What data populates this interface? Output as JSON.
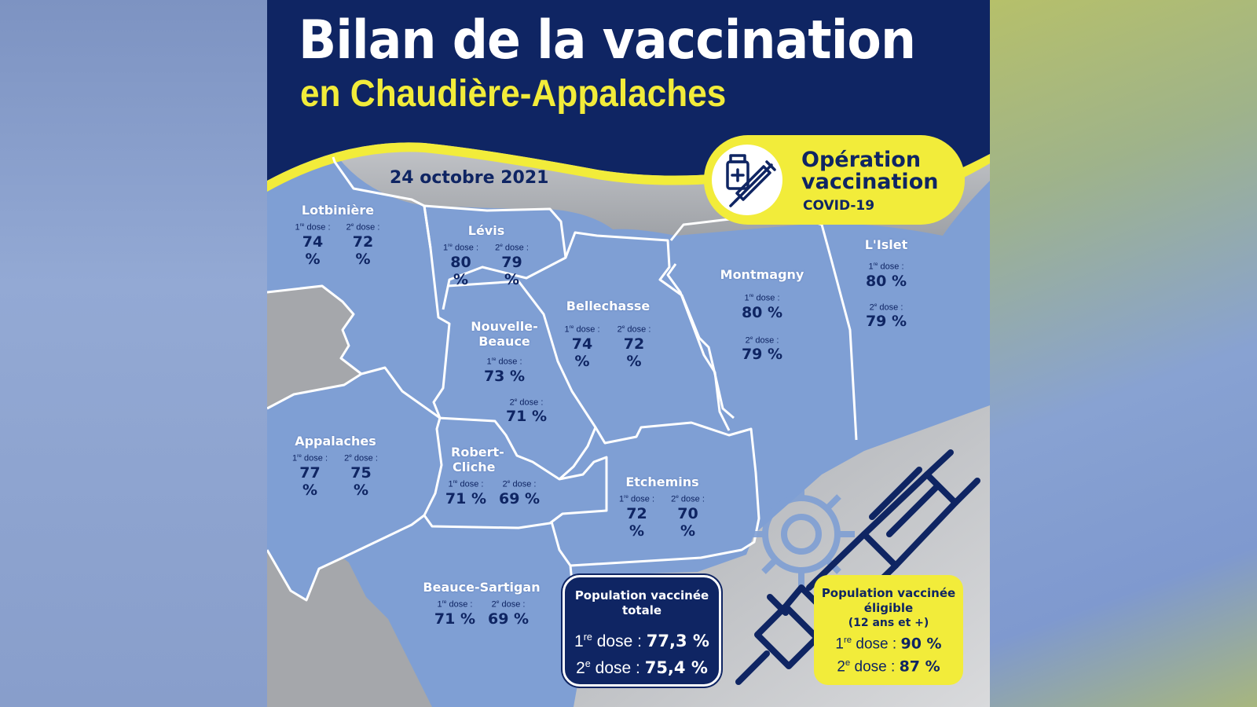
{
  "header": {
    "title": "Bilan de la vaccination",
    "subtitle": "en Chaudière-Appalaches",
    "date": "24 octobre 2021"
  },
  "operation_badge": {
    "line1": "Opération",
    "line2": "vaccination",
    "line3": "COVID-19",
    "icon": "vaccine-bottle-syringe-icon"
  },
  "dose_labels": {
    "first_sup": "re",
    "second_sup": "e",
    "suffix": " dose :"
  },
  "regions": [
    {
      "id": "lotbiniere",
      "name": "Lotbinière",
      "dose1": "74 %",
      "dose2": "72 %"
    },
    {
      "id": "levis",
      "name": "Lévis",
      "dose1": "80 %",
      "dose2": "79 %"
    },
    {
      "id": "bellechasse",
      "name": "Bellechasse",
      "dose1": "74 %",
      "dose2": "72 %"
    },
    {
      "id": "montmagny",
      "name": "Montmagny",
      "dose1": "80 %",
      "dose2": "79 %"
    },
    {
      "id": "lislet",
      "name": "L'Islet",
      "dose1": "80 %",
      "dose2": "79 %"
    },
    {
      "id": "nouvelle-beauce",
      "name": "Nouvelle-Beauce",
      "name_line1": "Nouvelle-",
      "name_line2": "Beauce",
      "dose1": "73 %",
      "dose2": "71 %"
    },
    {
      "id": "appalaches",
      "name": "Appalaches",
      "dose1": "77 %",
      "dose2": "75 %"
    },
    {
      "id": "robert-cliche",
      "name": "Robert-Cliche",
      "name_line1": "Robert-",
      "name_line2": "Cliche",
      "dose1": "71 %",
      "dose2": "69 %"
    },
    {
      "id": "etchemins",
      "name": "Etchemins",
      "dose1": "72 %",
      "dose2": "70 %"
    },
    {
      "id": "beauce-sartigan",
      "name": "Beauce-Sartigan",
      "dose1": "71 %",
      "dose2": "69 %"
    }
  ],
  "total_box": {
    "title_line1": "Population vaccinée",
    "title_line2": "totale",
    "dose1_label": "1",
    "dose1_sup": "re",
    "dose1_rest": " dose : ",
    "dose1_value": "77,3 %",
    "dose2_label": "2",
    "dose2_sup": "e",
    "dose2_rest": " dose : ",
    "dose2_value": "75,4 %"
  },
  "eligible_box": {
    "title_line1": "Population vaccinée",
    "title_line2": "éligible",
    "title_line3": "(12 ans et +)",
    "dose1_label": "1",
    "dose1_sup": "re",
    "dose1_rest": " dose : ",
    "dose1_value": "90 %",
    "dose2_label": "2",
    "dose2_sup": "e",
    "dose2_rest": " dose : ",
    "dose2_value": "87 %"
  },
  "colors": {
    "navy": "#0f2563",
    "yellow": "#f2ec3a",
    "region_fill": "#7f9fd4",
    "water_gray": "#b7b9bd"
  }
}
